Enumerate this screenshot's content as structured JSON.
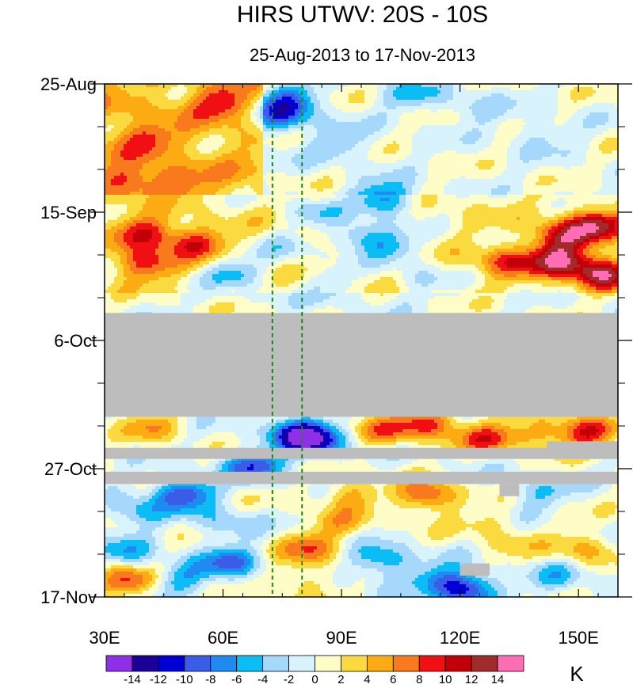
{
  "chart_data": {
    "type": "heatmap",
    "title": "HIRS UTWV: 20S - 10S",
    "subtitle": "25-Aug-2013 to 17-Nov-2013",
    "x_axis": {
      "range": [
        30,
        160
      ],
      "ticks": [
        {
          "value": 30,
          "label": "30E"
        },
        {
          "value": 60,
          "label": "60E"
        },
        {
          "value": 90,
          "label": "90E"
        },
        {
          "value": 120,
          "label": "120E"
        },
        {
          "value": 150,
          "label": "150E"
        }
      ]
    },
    "y_axis": {
      "range_days": [
        0,
        84
      ],
      "ticks": [
        {
          "day": 0,
          "label": "25-Aug"
        },
        {
          "day": 21,
          "label": "15-Sep"
        },
        {
          "day": 42,
          "label": "6-Oct"
        },
        {
          "day": 63,
          "label": "27-Oct"
        },
        {
          "day": 84,
          "label": "17-Nov"
        }
      ]
    },
    "reference_lines_lon": [
      72.5,
      80
    ],
    "missing_data": [
      {
        "day_start": 37.5,
        "day_end": 54.5
      },
      {
        "day_start": 59.6,
        "day_end": 61.4
      },
      {
        "day_start": 63.5,
        "day_end": 65.5
      },
      {
        "lon_start": 142,
        "lon_end": 160,
        "day_start": 58.5,
        "day_end": 61.4
      },
      {
        "lon_start": 130,
        "lon_end": 135,
        "day_start": 65.5,
        "day_end": 67.5
      },
      {
        "lon_start": 120,
        "lon_end": 127.5,
        "day_start": 78.5,
        "day_end": 80.5
      }
    ],
    "field_features": [
      {
        "lon": 60,
        "day": 3,
        "v": 6
      },
      {
        "lon": 40,
        "day": 9,
        "v": 5
      },
      {
        "lon": 36,
        "day": 16,
        "v": 5
      },
      {
        "lon": 48,
        "day": 16,
        "v": 4
      },
      {
        "lon": 75,
        "day": 5.5,
        "v": -8
      },
      {
        "lon": 77,
        "day": 2.5,
        "v": -7
      },
      {
        "lon": 90,
        "day": 10,
        "v": -4
      },
      {
        "lon": 101,
        "day": 19,
        "v": -9
      },
      {
        "lon": 108,
        "day": 2,
        "v": -4
      },
      {
        "lon": 123,
        "day": 4,
        "v": -3
      },
      {
        "lon": 140,
        "day": 8,
        "v": -3
      },
      {
        "lon": 83,
        "day": 21,
        "v": -4
      },
      {
        "lon": 95,
        "day": 25,
        "v": -7
      },
      {
        "lon": 104,
        "day": 27,
        "v": -5
      },
      {
        "lon": 76,
        "day": 27,
        "v": -3
      },
      {
        "lon": 40,
        "day": 24.5,
        "v": 9
      },
      {
        "lon": 53,
        "day": 26,
        "v": 8
      },
      {
        "lon": 40,
        "day": 29.5,
        "v": 8
      },
      {
        "lon": 63,
        "day": 31,
        "v": -6
      },
      {
        "lon": 88,
        "day": 33,
        "v": -3
      },
      {
        "lon": 110,
        "day": 32,
        "v": -3
      },
      {
        "lon": 146,
        "day": 25,
        "v": 9
      },
      {
        "lon": 155,
        "day": 23,
        "v": 10
      },
      {
        "lon": 145,
        "day": 29,
        "v": 11
      },
      {
        "lon": 156,
        "day": 31,
        "v": 12
      },
      {
        "lon": 132,
        "day": 29,
        "v": 7
      },
      {
        "lon": 42,
        "day": 56,
        "v": 5
      },
      {
        "lon": 78,
        "day": 57,
        "v": -8
      },
      {
        "lon": 83,
        "day": 58.5,
        "v": -12
      },
      {
        "lon": 101,
        "day": 57,
        "v": 6
      },
      {
        "lon": 112,
        "day": 55.5,
        "v": 9
      },
      {
        "lon": 127,
        "day": 58,
        "v": 8
      },
      {
        "lon": 140,
        "day": 57,
        "v": 5
      },
      {
        "lon": 152,
        "day": 57,
        "v": 10
      },
      {
        "lon": 68,
        "day": 62.5,
        "v": -9
      },
      {
        "lon": 50,
        "day": 67,
        "v": -10
      },
      {
        "lon": 38,
        "day": 70,
        "v": -5
      },
      {
        "lon": 92,
        "day": 67,
        "v": 5
      },
      {
        "lon": 112,
        "day": 67.5,
        "v": 9
      },
      {
        "lon": 140,
        "day": 67,
        "v": -4
      },
      {
        "lon": 60,
        "day": 72,
        "v": -4
      },
      {
        "lon": 90,
        "day": 72,
        "v": 4
      },
      {
        "lon": 128,
        "day": 72,
        "v": 3
      },
      {
        "lon": 36,
        "day": 77,
        "v": -5
      },
      {
        "lon": 62,
        "day": 78.5,
        "v": -8
      },
      {
        "lon": 82,
        "day": 76,
        "v": 7
      },
      {
        "lon": 100,
        "day": 78,
        "v": -7
      },
      {
        "lon": 113,
        "day": 81,
        "v": -4
      },
      {
        "lon": 36,
        "day": 81.5,
        "v": 8
      },
      {
        "lon": 50,
        "day": 81,
        "v": -5
      },
      {
        "lon": 79,
        "day": 81,
        "v": 4
      },
      {
        "lon": 121,
        "day": 82.5,
        "v": -12
      },
      {
        "lon": 145,
        "day": 81,
        "v": -4
      },
      {
        "lon": 151,
        "day": 76,
        "v": 5
      },
      {
        "lon": 133,
        "day": 76,
        "v": 2
      }
    ],
    "colorbar": {
      "unit": "K",
      "levels": [
        -14,
        -12,
        -10,
        -8,
        -6,
        -4,
        -2,
        0,
        2,
        4,
        6,
        8,
        10,
        12,
        14
      ],
      "labels": [
        "-14",
        "-12",
        "-10",
        "-8",
        "-6",
        "-4",
        "-2",
        "0",
        "2",
        "4",
        "6",
        "8",
        "10",
        "12",
        "14"
      ],
      "colors": [
        "#8f2fe8",
        "#1a0096",
        "#0000d6",
        "#3a5ce6",
        "#1f8bf0",
        "#0bbcf5",
        "#a5d8fb",
        "#d8f3fc",
        "#fefcc7",
        "#fbda40",
        "#fcab13",
        "#f87a1c",
        "#f00f13",
        "#c20008",
        "#a12a2a",
        "#ff6eb4"
      ]
    }
  }
}
